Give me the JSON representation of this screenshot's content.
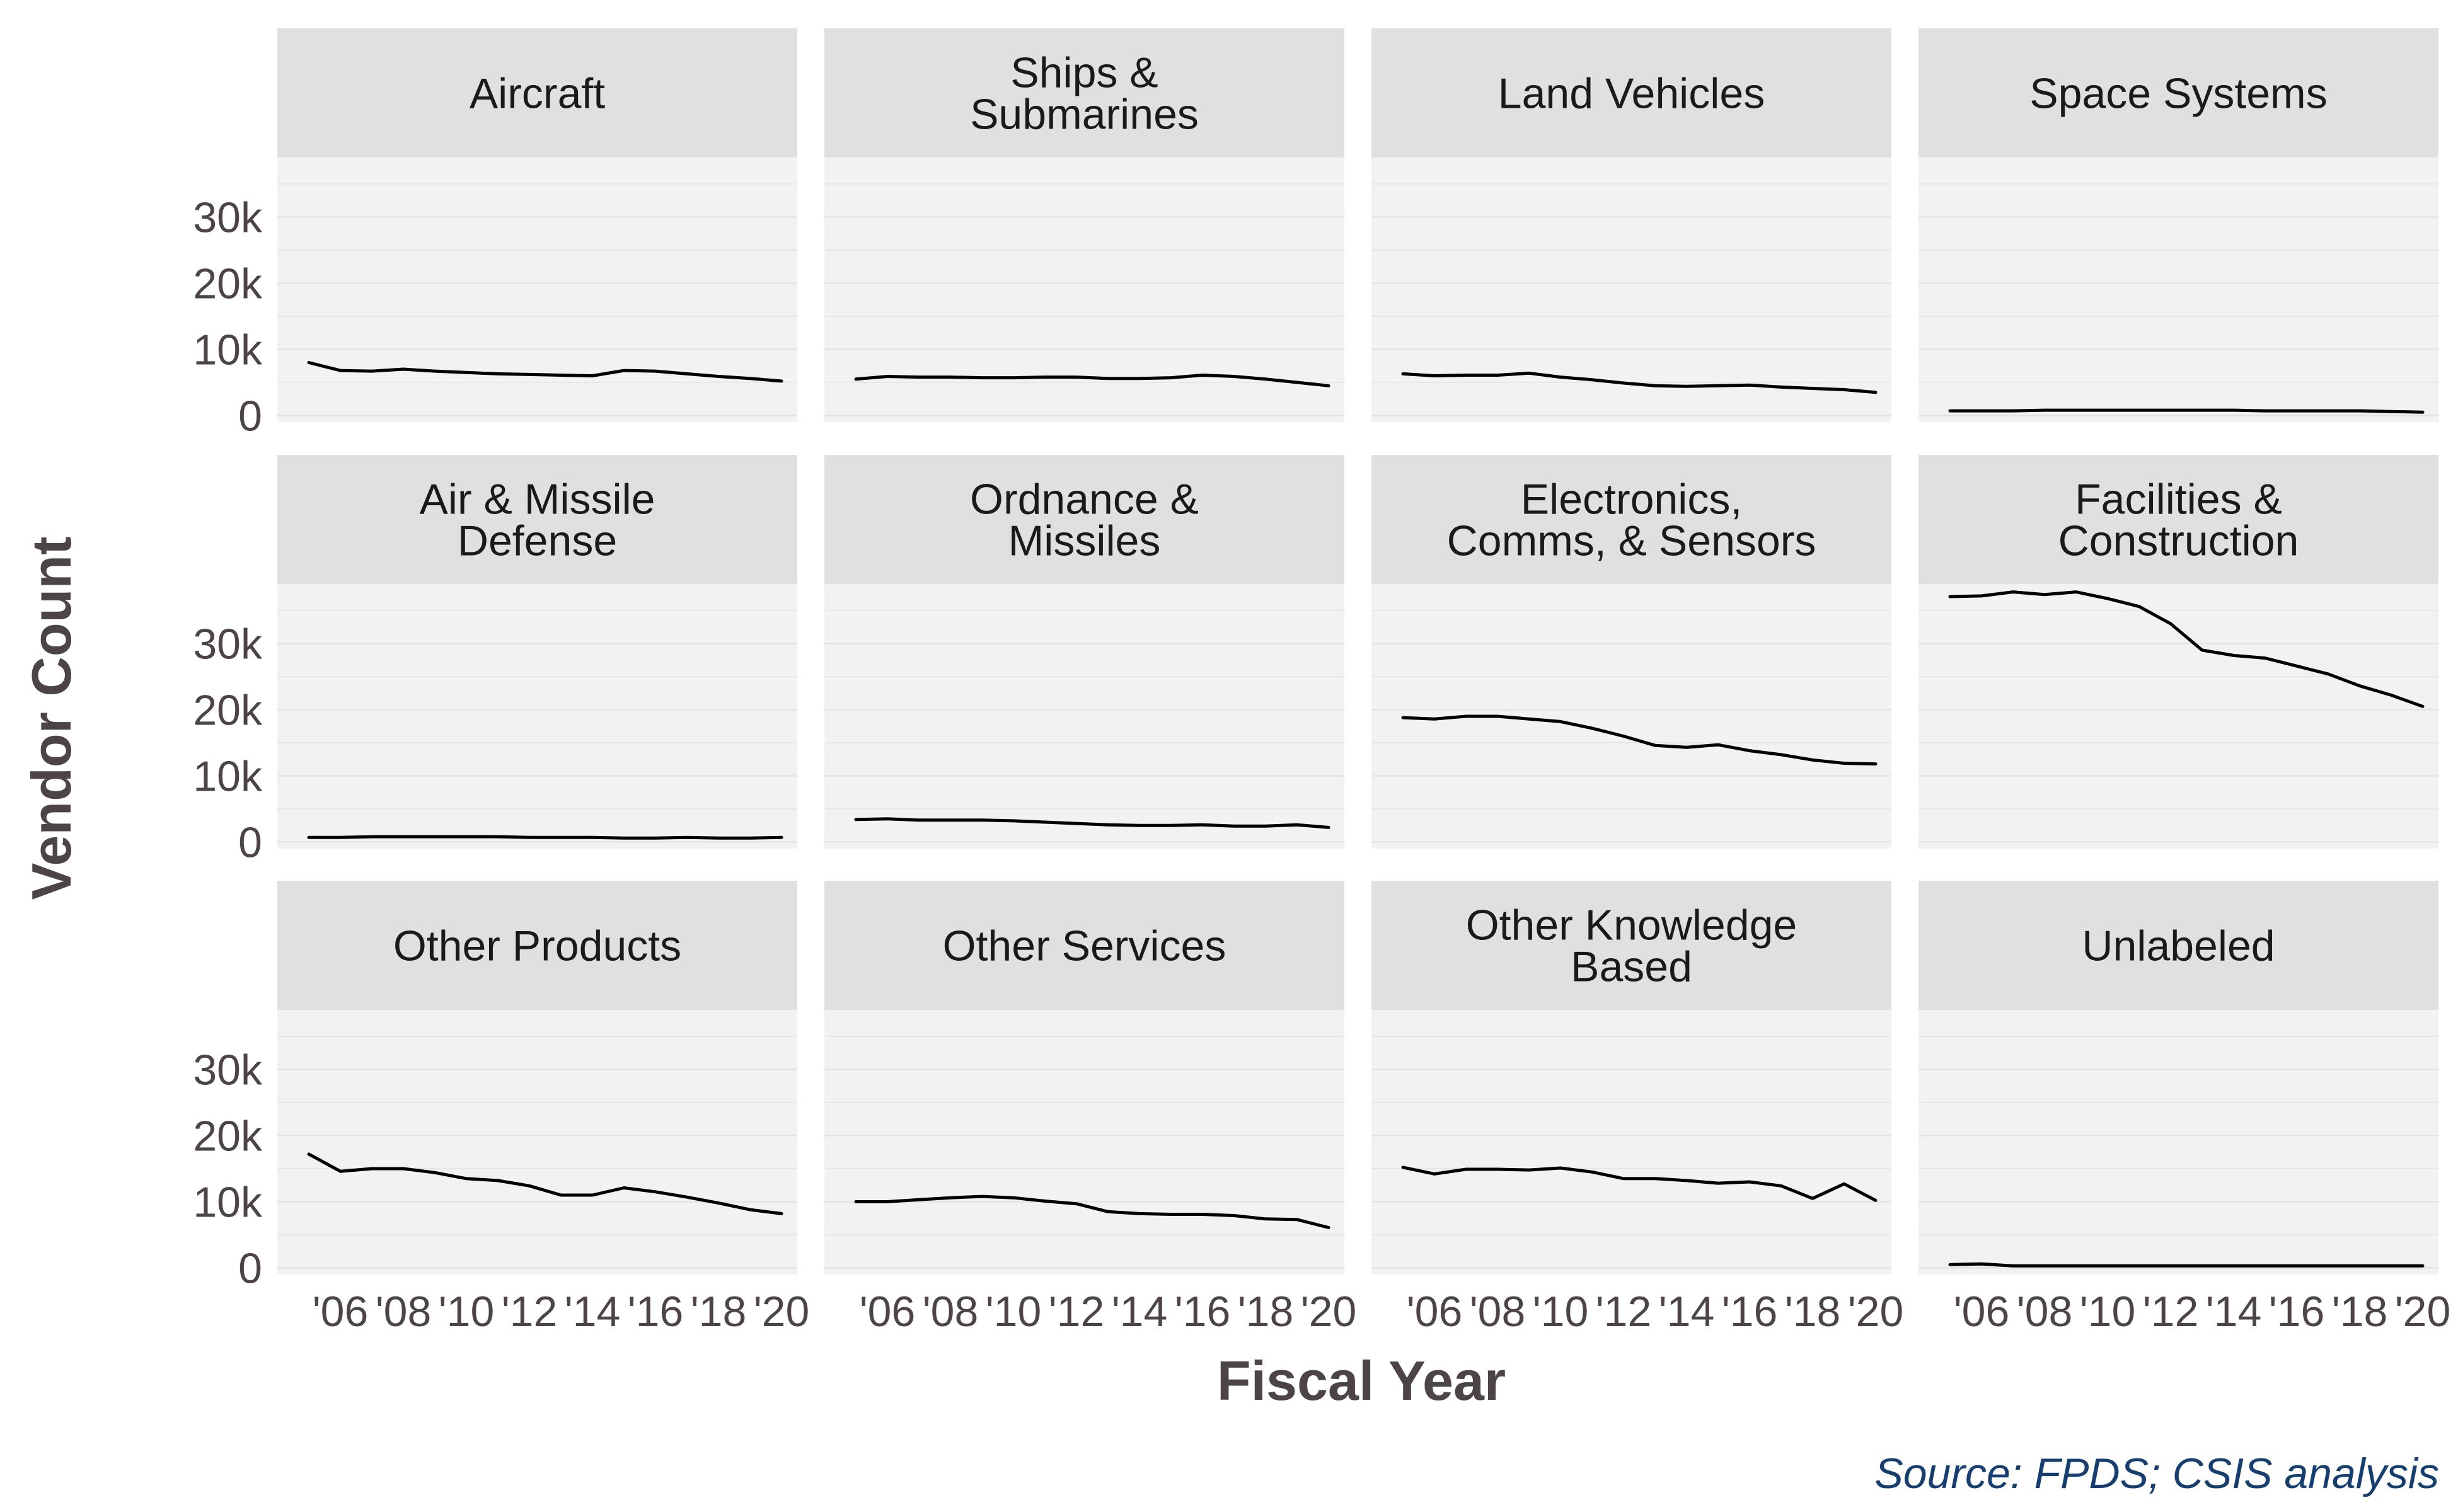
{
  "chart_data": {
    "type": "line",
    "layout": "facet-grid 3x4",
    "xlabel": "Fiscal Year",
    "ylabel": "Vendor Count",
    "caption": "Source: FPDS; CSIS analysis",
    "x": [
      2005,
      2006,
      2007,
      2008,
      2009,
      2010,
      2011,
      2012,
      2013,
      2014,
      2015,
      2016,
      2017,
      2018,
      2019,
      2020
    ],
    "xticks": [
      2006,
      2008,
      2010,
      2012,
      2014,
      2016,
      2018,
      2020
    ],
    "xtick_labels": [
      "'06",
      "'08",
      "'10",
      "'12",
      "'14",
      "'16",
      "'18",
      "'20"
    ],
    "xlim": [
      2004,
      2020.5
    ],
    "yticks": [
      0,
      10000,
      20000,
      30000
    ],
    "ytick_labels": [
      "0",
      "10k",
      "20k",
      "30k"
    ],
    "ylim": [
      -1000,
      39000
    ],
    "grid": true,
    "line_color": "#000000",
    "panel_color": "#f2f2f2",
    "strip_color": "#e0e0e0",
    "grid_color": "#e3e3e3",
    "facets": [
      {
        "title": [
          "Aircraft"
        ],
        "values": [
          8000,
          6800,
          6700,
          7000,
          6700,
          6500,
          6300,
          6200,
          6100,
          6000,
          6800,
          6700,
          6300,
          5900,
          5600,
          5200
        ]
      },
      {
        "title": [
          "Ships &",
          "Submarines"
        ],
        "values": [
          5500,
          5900,
          5800,
          5800,
          5700,
          5700,
          5800,
          5800,
          5600,
          5600,
          5700,
          6100,
          5900,
          5500,
          5000,
          4500
        ]
      },
      {
        "title": [
          "Land Vehicles"
        ],
        "values": [
          6300,
          6000,
          6100,
          6100,
          6400,
          5800,
          5400,
          4900,
          4500,
          4400,
          4500,
          4600,
          4300,
          4100,
          3900,
          3500
        ]
      },
      {
        "title": [
          "Space Systems"
        ],
        "values": [
          700,
          700,
          700,
          800,
          800,
          800,
          800,
          800,
          800,
          800,
          700,
          700,
          700,
          700,
          600,
          500
        ]
      },
      {
        "title": [
          "Air & Missile",
          "Defense"
        ],
        "values": [
          700,
          700,
          800,
          800,
          800,
          800,
          800,
          700,
          700,
          700,
          600,
          600,
          700,
          600,
          600,
          700
        ]
      },
      {
        "title": [
          "Ordnance &",
          "Missiles"
        ],
        "values": [
          3400,
          3500,
          3300,
          3300,
          3300,
          3200,
          3000,
          2800,
          2600,
          2500,
          2500,
          2600,
          2400,
          2400,
          2600,
          2200
        ]
      },
      {
        "title": [
          "Electronics,",
          "Comms, & Sensors"
        ],
        "values": [
          18800,
          18600,
          19000,
          19000,
          18600,
          18200,
          17200,
          16000,
          14600,
          14300,
          14700,
          13800,
          13200,
          12400,
          11900,
          11800
        ]
      },
      {
        "title": [
          "Facilities &",
          "Construction"
        ],
        "values": [
          37100,
          37200,
          37800,
          37400,
          37800,
          36800,
          35600,
          33000,
          29000,
          28200,
          27800,
          26600,
          25400,
          23600,
          22200,
          20500
        ]
      },
      {
        "title": [
          "Other Products"
        ],
        "values": [
          17200,
          14600,
          15000,
          15000,
          14400,
          13500,
          13200,
          12400,
          11000,
          11000,
          12100,
          11500,
          10700,
          9800,
          8800,
          8200
        ]
      },
      {
        "title": [
          "Other Services"
        ],
        "values": [
          10000,
          10000,
          10300,
          10600,
          10800,
          10600,
          10100,
          9700,
          8500,
          8200,
          8100,
          8100,
          7900,
          7400,
          7300,
          6100
        ]
      },
      {
        "title": [
          "Other Knowledge",
          "Based"
        ],
        "values": [
          15200,
          14200,
          14900,
          14900,
          14800,
          15100,
          14500,
          13500,
          13500,
          13200,
          12800,
          13000,
          12400,
          10500,
          12700,
          10200
        ]
      },
      {
        "title": [
          "Unlabeled"
        ],
        "values": [
          500,
          600,
          300,
          300,
          300,
          300,
          300,
          300,
          300,
          300,
          300,
          300,
          300,
          300,
          300,
          300
        ]
      }
    ]
  }
}
